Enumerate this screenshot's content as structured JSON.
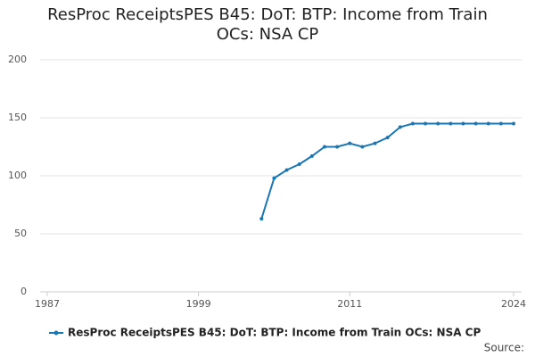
{
  "chart_data": {
    "type": "line",
    "title": "ResProc ReceiptsPES B45: DoT: BTP: Income from Train OCs: NSA CP",
    "x": [
      2004,
      2005,
      2006,
      2007,
      2008,
      2009,
      2010,
      2011,
      2012,
      2013,
      2014,
      2015,
      2016,
      2017,
      2018,
      2019,
      2020,
      2021,
      2022,
      2023,
      2024
    ],
    "series": [
      {
        "name": "ResProc ReceiptsPES B45: DoT: BTP: Income from Train OCs: NSA CP",
        "color": "#1a77b5",
        "values": [
          63,
          98,
          105,
          110,
          117,
          125,
          125,
          128,
          125,
          128,
          133,
          142,
          145,
          145,
          145,
          145,
          145,
          145,
          145,
          145,
          145
        ]
      }
    ],
    "xlim": [
      1987,
      2024
    ],
    "xticks": [
      1987,
      1999,
      2011,
      2024
    ],
    "ylim": [
      0,
      200
    ],
    "yticks": [
      0,
      50,
      100,
      150,
      200
    ],
    "grid": true,
    "legend": "bottom",
    "source": "Source:"
  }
}
